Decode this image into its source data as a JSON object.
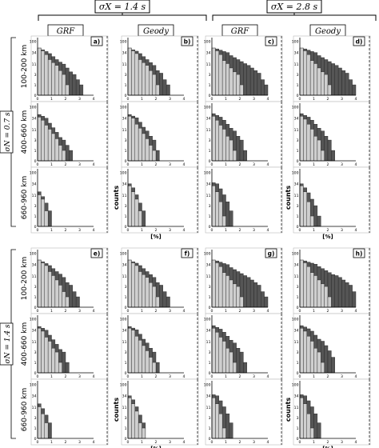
{
  "header": {
    "col_group_left": "σX = 1.4 s",
    "col_group_right": "σX = 2.8 s",
    "col_titles": [
      "GRF",
      "Geody",
      "GRF",
      "Geody"
    ]
  },
  "row_groups": [
    "σN = 0.7 s",
    "σN = 1.4 s"
  ],
  "depth_labels": [
    "100-200 km",
    "400-660 km",
    "660-960 km"
  ],
  "counts_label": "counts",
  "xlabel": "[%]",
  "yticks": [
    "0",
    "1",
    "3",
    "11",
    "34",
    "100"
  ],
  "xticks": [
    "0",
    "1",
    "2",
    "3",
    "4"
  ],
  "panel_letters": [
    "a)",
    "b)",
    "c)",
    "d)",
    "e)",
    "f)",
    "g)",
    "h)"
  ],
  "colors": {
    "light": "#cfcfcf",
    "dark": "#555555",
    "frame": "#000000"
  },
  "chart_data": {
    "type": "bar",
    "description_units": "histograms of relative misfit [%] on log count axis",
    "bin_width": 0.25,
    "ylim_counts": [
      0,
      100
    ],
    "xlim": [
      0,
      4
    ],
    "panels": [
      {
        "letter": "a)",
        "series": [
          {
            "name": "light",
            "values": [
              [
                60,
                44,
                30,
                20,
                14,
                10,
                6,
                3,
                1,
                0,
                0,
                0,
                0,
                0,
                0,
                0
              ],
              [
                40,
                30,
                20,
                12,
                8,
                4,
                2,
                1,
                0,
                0,
                0,
                0,
                0,
                0,
                0,
                0
              ],
              [
                12,
                8,
                2,
                0,
                0,
                0,
                0,
                0,
                0,
                0,
                0,
                0,
                0,
                0,
                0,
                0
              ]
            ]
          },
          {
            "name": "dark",
            "values": [
              [
                60,
                50,
                40,
                32,
                26,
                20,
                15,
                11,
                8,
                5,
                3,
                2,
                1,
                0,
                0,
                0
              ],
              [
                55,
                45,
                34,
                24,
                15,
                9,
                5,
                3,
                2,
                1,
                0,
                0,
                0,
                0,
                0,
                0
              ],
              [
                18,
                10,
                5,
                2,
                0,
                0,
                0,
                0,
                0,
                0,
                0,
                0,
                0,
                0,
                0,
                0
              ]
            ]
          }
        ]
      },
      {
        "letter": "b)",
        "series": [
          {
            "name": "light",
            "values": [
              [
                60,
                44,
                32,
                20,
                14,
                10,
                6,
                3,
                1,
                0,
                0,
                0,
                0,
                0,
                0,
                0
              ],
              [
                45,
                34,
                22,
                14,
                8,
                4,
                2,
                1,
                0,
                0,
                0,
                0,
                0,
                0,
                0,
                0
              ],
              [
                30,
                18,
                8,
                2,
                0,
                0,
                0,
                0,
                0,
                0,
                0,
                0,
                0,
                0,
                0,
                0
              ]
            ]
          },
          {
            "name": "dark",
            "values": [
              [
                60,
                50,
                42,
                32,
                26,
                20,
                14,
                10,
                6,
                4,
                2,
                1,
                0,
                0,
                0,
                0
              ],
              [
                55,
                46,
                36,
                26,
                16,
                10,
                6,
                3,
                1,
                0,
                0,
                0,
                0,
                0,
                0,
                0
              ],
              [
                34,
                26,
                12,
                5,
                2,
                0,
                0,
                0,
                0,
                0,
                0,
                0,
                0,
                0,
                0,
                0
              ]
            ]
          }
        ]
      },
      {
        "letter": "c)",
        "series": [
          {
            "name": "light",
            "values": [
              [
                60,
                44,
                30,
                18,
                12,
                8,
                5,
                3,
                1,
                0,
                0,
                0,
                0,
                0,
                0,
                0
              ],
              [
                45,
                30,
                20,
                12,
                6,
                3,
                1,
                0,
                0,
                0,
                0,
                0,
                0,
                0,
                0,
                0
              ],
              [
                30,
                18,
                6,
                1,
                0,
                0,
                0,
                0,
                0,
                0,
                0,
                0,
                0,
                0,
                0,
                0
              ]
            ]
          },
          {
            "name": "dark",
            "values": [
              [
                60,
                55,
                48,
                40,
                34,
                28,
                24,
                20,
                16,
                12,
                10,
                8,
                6,
                4,
                2,
                1
              ],
              [
                60,
                50,
                40,
                30,
                22,
                14,
                10,
                6,
                3,
                1,
                0,
                0,
                0,
                0,
                0,
                0
              ],
              [
                40,
                34,
                24,
                12,
                6,
                2,
                0,
                0,
                0,
                0,
                0,
                0,
                0,
                0,
                0,
                0
              ]
            ]
          }
        ]
      },
      {
        "letter": "d)",
        "series": [
          {
            "name": "light",
            "values": [
              [
                60,
                44,
                30,
                18,
                12,
                8,
                5,
                3,
                1,
                0,
                0,
                0,
                0,
                0,
                0,
                0
              ],
              [
                45,
                32,
                22,
                12,
                6,
                3,
                1,
                0,
                0,
                0,
                0,
                0,
                0,
                0,
                0,
                0
              ],
              [
                30,
                18,
                6,
                1,
                0,
                0,
                0,
                0,
                0,
                0,
                0,
                0,
                0,
                0,
                0,
                0
              ]
            ]
          },
          {
            "name": "dark",
            "values": [
              [
                60,
                55,
                48,
                40,
                34,
                28,
                24,
                20,
                16,
                12,
                10,
                8,
                6,
                4,
                2,
                1
              ],
              [
                60,
                50,
                40,
                30,
                22,
                14,
                10,
                6,
                3,
                1,
                0,
                0,
                0,
                0,
                0,
                0
              ],
              [
                34,
                26,
                16,
                8,
                3,
                1,
                0,
                0,
                0,
                0,
                0,
                0,
                0,
                0,
                0,
                0
              ]
            ]
          }
        ]
      },
      {
        "letter": "e)",
        "series": [
          {
            "name": "light",
            "values": [
              [
                60,
                44,
                32,
                20,
                12,
                8,
                4,
                2,
                1,
                0,
                0,
                0,
                0,
                0,
                0,
                0
              ],
              [
                45,
                32,
                20,
                12,
                6,
                3,
                1,
                0,
                0,
                0,
                0,
                0,
                0,
                0,
                0,
                0
              ],
              [
                12,
                6,
                2,
                0,
                0,
                0,
                0,
                0,
                0,
                0,
                0,
                0,
                0,
                0,
                0,
                0
              ]
            ]
          },
          {
            "name": "dark",
            "values": [
              [
                60,
                50,
                40,
                32,
                26,
                20,
                15,
                10,
                6,
                4,
                2,
                1,
                0,
                0,
                0,
                0
              ],
              [
                55,
                45,
                34,
                24,
                15,
                9,
                5,
                3,
                1,
                0,
                0,
                0,
                0,
                0,
                0,
                0
              ],
              [
                18,
                10,
                5,
                2,
                0,
                0,
                0,
                0,
                0,
                0,
                0,
                0,
                0,
                0,
                0,
                0
              ]
            ]
          }
        ]
      },
      {
        "letter": "f)",
        "series": [
          {
            "name": "light",
            "values": [
              [
                60,
                44,
                32,
                20,
                14,
                10,
                6,
                3,
                1,
                0,
                0,
                0,
                0,
                0,
                0,
                0
              ],
              [
                45,
                34,
                22,
                14,
                8,
                4,
                2,
                1,
                0,
                0,
                0,
                0,
                0,
                0,
                0,
                0
              ],
              [
                30,
                18,
                8,
                2,
                1,
                0,
                0,
                0,
                0,
                0,
                0,
                0,
                0,
                0,
                0,
                0
              ]
            ]
          },
          {
            "name": "dark",
            "values": [
              [
                60,
                50,
                42,
                32,
                26,
                20,
                14,
                10,
                6,
                4,
                2,
                1,
                0,
                0,
                0,
                0
              ],
              [
                55,
                46,
                36,
                26,
                16,
                10,
                6,
                3,
                1,
                0,
                0,
                0,
                0,
                0,
                0,
                0
              ],
              [
                34,
                26,
                12,
                5,
                2,
                0,
                0,
                0,
                0,
                0,
                0,
                0,
                0,
                0,
                0,
                0
              ]
            ]
          }
        ]
      },
      {
        "letter": "g)",
        "series": [
          {
            "name": "light",
            "values": [
              [
                60,
                44,
                30,
                18,
                12,
                8,
                5,
                3,
                1,
                0,
                0,
                0,
                0,
                0,
                0,
                0
              ],
              [
                45,
                30,
                20,
                12,
                6,
                3,
                1,
                0,
                0,
                0,
                0,
                0,
                0,
                0,
                0,
                0
              ],
              [
                30,
                18,
                6,
                1,
                0,
                0,
                0,
                0,
                0,
                0,
                0,
                0,
                0,
                0,
                0,
                0
              ]
            ]
          },
          {
            "name": "dark",
            "values": [
              [
                60,
                55,
                48,
                40,
                34,
                28,
                24,
                20,
                16,
                12,
                10,
                8,
                6,
                4,
                2,
                1
              ],
              [
                60,
                50,
                40,
                30,
                22,
                14,
                10,
                6,
                3,
                1,
                0,
                0,
                0,
                0,
                0,
                0
              ],
              [
                40,
                34,
                24,
                12,
                6,
                2,
                0,
                0,
                0,
                0,
                0,
                0,
                0,
                0,
                0,
                0
              ]
            ]
          }
        ]
      },
      {
        "letter": "h)",
        "series": [
          {
            "name": "light",
            "values": [
              [
                60,
                44,
                30,
                18,
                12,
                8,
                5,
                3,
                1,
                0,
                0,
                0,
                0,
                0,
                0,
                0
              ],
              [
                45,
                32,
                22,
                12,
                6,
                3,
                1,
                0,
                0,
                0,
                0,
                0,
                0,
                0,
                0,
                0
              ],
              [
                30,
                18,
                6,
                1,
                0,
                0,
                0,
                0,
                0,
                0,
                0,
                0,
                0,
                0,
                0,
                0
              ]
            ]
          },
          {
            "name": "dark",
            "values": [
              [
                60,
                55,
                48,
                42,
                36,
                30,
                26,
                22,
                18,
                14,
                12,
                10,
                8,
                6,
                4,
                2
              ],
              [
                60,
                52,
                42,
                32,
                24,
                16,
                12,
                8,
                4,
                2,
                0,
                0,
                0,
                0,
                0,
                0
              ],
              [
                40,
                34,
                24,
                12,
                6,
                2,
                0,
                0,
                0,
                0,
                0,
                0,
                0,
                0,
                0,
                0
              ]
            ]
          }
        ]
      }
    ]
  }
}
